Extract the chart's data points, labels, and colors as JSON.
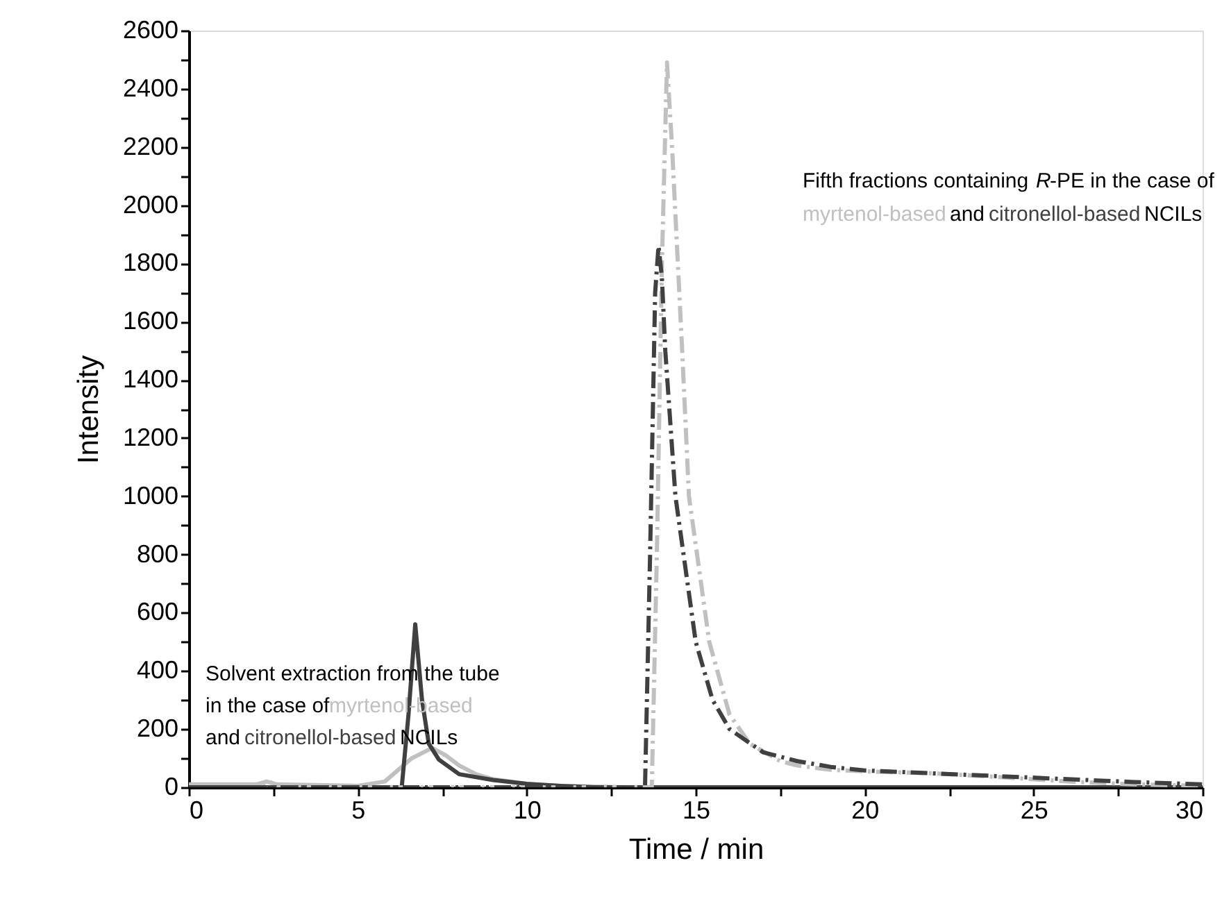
{
  "chart_data": {
    "type": "line",
    "xlabel": "Time / min",
    "ylabel": "Intensity",
    "xlim": [
      0,
      30
    ],
    "ylim": [
      0,
      2600
    ],
    "xticks": [
      0,
      {
        "value": 2.5,
        "label": null
      },
      5,
      {
        "value": 7.5,
        "label": null
      },
      10,
      {
        "value": 12.5,
        "label": null
      },
      15,
      {
        "value": 17.5,
        "label": null
      },
      20,
      {
        "value": 22.5,
        "label": null
      },
      25,
      {
        "value": 27.5,
        "label": null
      },
      30
    ],
    "yticks": [
      0,
      {
        "value": 100,
        "label": null
      },
      200,
      {
        "value": 300,
        "label": null
      },
      400,
      {
        "value": 500,
        "label": null
      },
      600,
      {
        "value": 700,
        "label": null
      },
      800,
      {
        "value": 900,
        "label": null
      },
      1000,
      {
        "value": 1100,
        "label": null
      },
      1200,
      {
        "value": 1300,
        "label": null
      },
      1400,
      {
        "value": 1500,
        "label": null
      },
      1600,
      {
        "value": 1700,
        "label": null
      },
      1800,
      {
        "value": 1900,
        "label": null
      },
      2000,
      {
        "value": 2100,
        "label": null
      },
      2200,
      {
        "value": 2300,
        "label": null
      },
      2400,
      {
        "value": 2500,
        "label": null
      },
      2600
    ],
    "grid": false,
    "marker": "none",
    "series": [
      {
        "color": "#c0c0c0",
        "line_style": "solid",
        "x": [
          0,
          2,
          2.3,
          2.6,
          5,
          5.8,
          6.2,
          6.6,
          7.2,
          7.6,
          8,
          8.5,
          9,
          10,
          11,
          13,
          30
        ],
        "values": [
          10,
          10,
          20,
          10,
          5,
          20,
          60,
          100,
          135,
          110,
          75,
          45,
          28,
          12,
          5,
          0,
          0
        ]
      },
      {
        "color": "#404040",
        "line_style": "solid",
        "x": [
          0,
          6.3,
          6.5,
          6.7,
          6.9,
          7.1,
          7.4,
          8,
          9,
          10,
          11,
          12,
          30
        ],
        "values": [
          0,
          0,
          250,
          560,
          300,
          150,
          95,
          45,
          25,
          12,
          5,
          0,
          0
        ]
      },
      {
        "color": "#c0c0c0",
        "line_style": "dashed",
        "x": [
          0,
          2.2,
          2.4,
          2.6,
          13.7,
          13.85,
          14,
          14.15,
          14.3,
          14.6,
          14.8,
          15.4,
          16,
          16.6,
          17.5,
          18,
          19,
          20,
          22,
          24,
          26,
          28,
          30
        ],
        "values": [
          0,
          0,
          20,
          0,
          0,
          800,
          1800,
          2490,
          2200,
          1500,
          1000,
          500,
          250,
          150,
          90,
          75,
          60,
          55,
          48,
          35,
          20,
          10,
          5
        ]
      },
      {
        "color": "#404040",
        "line_style": "dashed",
        "x": [
          0,
          13.5,
          13.65,
          13.8,
          13.9,
          14,
          14.1,
          14.4,
          15,
          15.5,
          16,
          17,
          18,
          19,
          20,
          22,
          24,
          26,
          28,
          30
        ],
        "values": [
          0,
          0,
          800,
          1700,
          1860,
          1750,
          1500,
          1000,
          500,
          300,
          200,
          120,
          90,
          70,
          58,
          48,
          38,
          28,
          18,
          10
        ]
      }
    ],
    "annotations": [
      "Solvent extraction from the tube",
      "in the case of ",
      "myrtenol-based",
      "and ",
      "citronellol-based",
      " NCILs",
      "Fifth fractions containing ",
      "R",
      "-PE in the case of",
      "myrtenol-based",
      " and ",
      "citronellol-based",
      " NCILs"
    ]
  }
}
